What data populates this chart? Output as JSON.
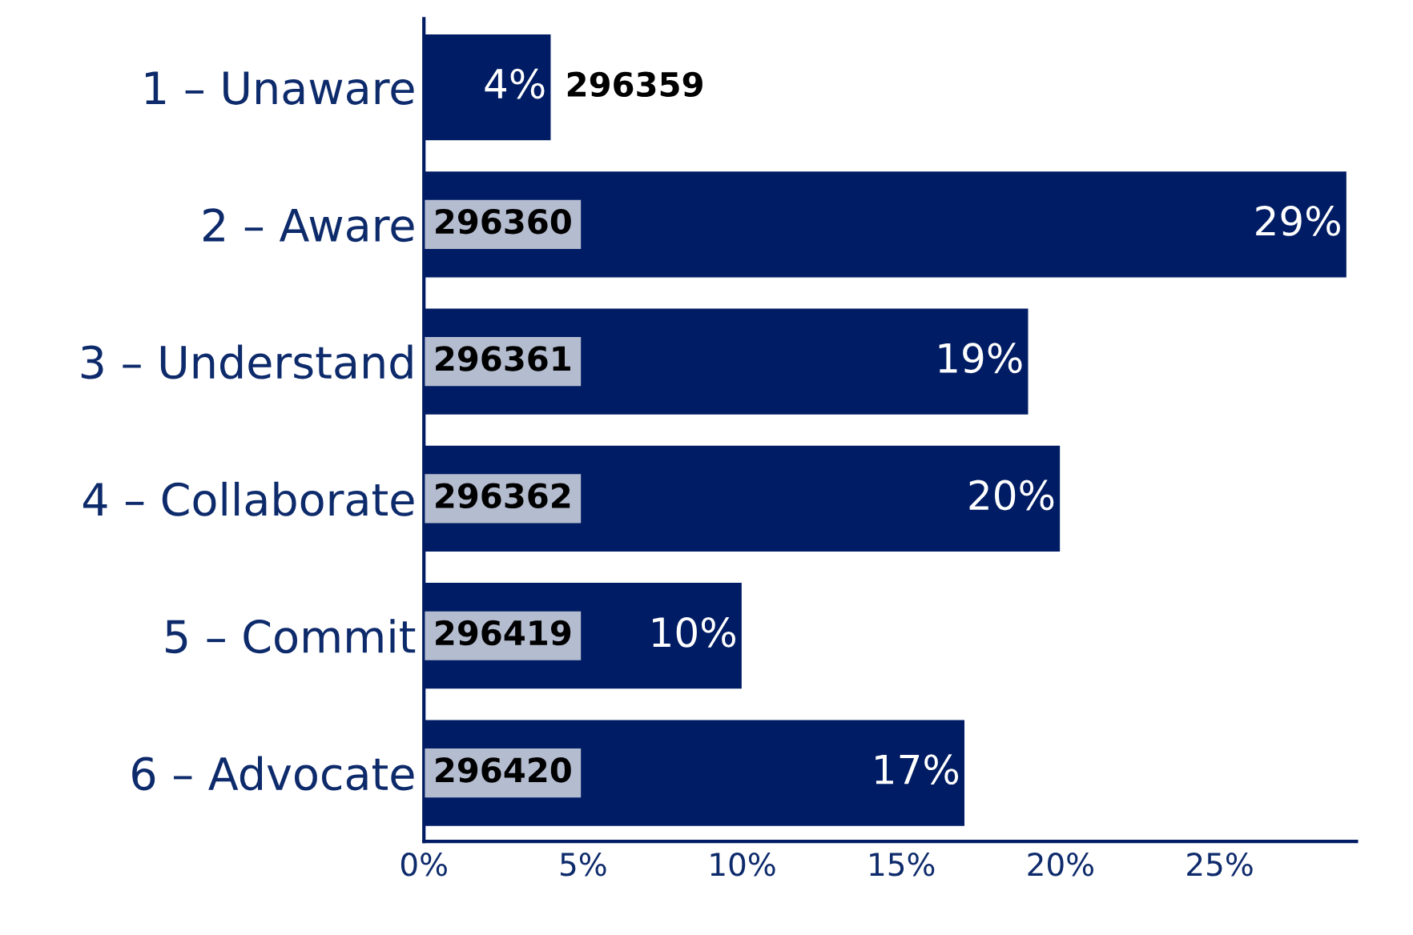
{
  "chart_data": {
    "type": "bar",
    "orientation": "horizontal",
    "categories": [
      "1 – Unaware",
      "2 – Aware",
      "3 – Understand",
      "4 – Collaborate",
      "5 – Commit",
      "6 – Advocate"
    ],
    "values": [
      4,
      29,
      19,
      20,
      10,
      17
    ],
    "value_labels": [
      "4%",
      "29%",
      "19%",
      "20%",
      "10%",
      "17%"
    ],
    "color": "#001c64",
    "xlim": [
      0,
      29.3
    ],
    "xticks": [
      {
        "value": 0,
        "label": "0%"
      },
      {
        "value": 5,
        "label": "5%"
      },
      {
        "value": 10,
        "label": "10%"
      },
      {
        "value": 15,
        "label": "15%"
      },
      {
        "value": 20,
        "label": "20%"
      },
      {
        "value": 25,
        "label": "25%"
      }
    ],
    "annotations": [
      "296359",
      "296360",
      "296361",
      "296362",
      "296419",
      "296420"
    ],
    "grid": false,
    "legend": false
  }
}
